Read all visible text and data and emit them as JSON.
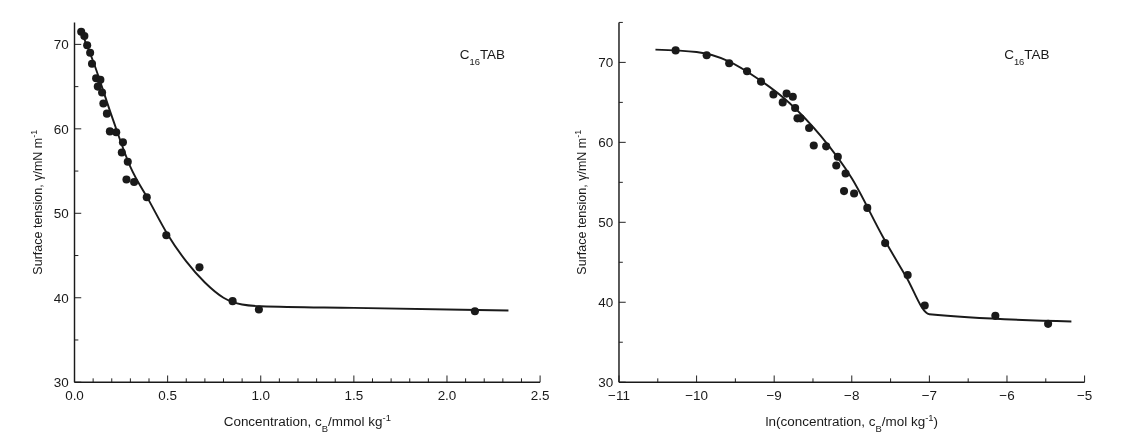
{
  "chart_data": [
    {
      "type": "scatter",
      "xlabel": "Concentration, c$_{B}$/mmol kg$^{-1}$",
      "ylabel": "Surface tension, γ/mN m$^{-1}$",
      "annotations": [
        "C$_{16}$TAB"
      ],
      "xlim": [
        0,
        2.5
      ],
      "ylim": [
        30,
        72.6
      ],
      "xticks": [
        {
          "value": 0,
          "label": "0.0"
        },
        {
          "value": 0.1,
          "label": null
        },
        {
          "value": 0.2,
          "label": null
        },
        {
          "value": 0.3,
          "label": null
        },
        {
          "value": 0.4,
          "label": null
        },
        0.5,
        {
          "value": 0.6,
          "label": null
        },
        {
          "value": 0.7,
          "label": null
        },
        {
          "value": 0.8,
          "label": null
        },
        {
          "value": 0.9,
          "label": null
        },
        {
          "value": 1,
          "label": "1.0"
        },
        {
          "value": 1.1,
          "label": null
        },
        {
          "value": 1.2,
          "label": null
        },
        {
          "value": 1.3,
          "label": null
        },
        {
          "value": 1.4,
          "label": null
        },
        1.5,
        {
          "value": 1.6,
          "label": null
        },
        {
          "value": 1.7,
          "label": null
        },
        {
          "value": 1.8,
          "label": null
        },
        {
          "value": 1.9,
          "label": null
        },
        {
          "value": 2,
          "label": "2.0"
        },
        {
          "value": 2.1,
          "label": null
        },
        {
          "value": 2.2,
          "label": null
        },
        {
          "value": 2.3,
          "label": null
        },
        {
          "value": 2.4,
          "label": null
        },
        2.5
      ],
      "yticks": [
        30,
        {
          "value": 35,
          "label": null
        },
        40,
        {
          "value": 45,
          "label": null
        },
        50,
        {
          "value": 55,
          "label": null
        },
        60,
        {
          "value": 65,
          "label": null
        },
        70
      ],
      "grid": false,
      "series": [
        {
          "type": "scatter",
          "marker": "circle",
          "color": "#1a1a1a",
          "x": [
            0.036,
            0.053,
            0.068,
            0.084,
            0.094,
            0.116,
            0.139,
            0.125,
            0.148,
            0.155,
            0.174,
            0.19,
            0.224,
            0.26,
            0.254,
            0.286,
            0.279,
            0.32,
            0.388,
            0.493,
            0.671,
            0.849,
            0.99,
            2.15
          ],
          "values": [
            71.5,
            71.0,
            69.9,
            69.0,
            67.7,
            66.0,
            65.8,
            65.0,
            64.3,
            63.0,
            61.8,
            59.7,
            59.6,
            58.4,
            57.2,
            56.1,
            54.0,
            53.7,
            51.9,
            47.4,
            43.6,
            39.6,
            38.6,
            38.4
          ]
        },
        {
          "type": "line",
          "line_style": "solid",
          "color": "#1a1a1a",
          "x": [
            0.03,
            0.1,
            0.2,
            0.3,
            0.4,
            0.5,
            0.6,
            0.7,
            0.8,
            0.9,
            1.0,
            1.5,
            2.33
          ],
          "values": [
            71.8,
            68,
            61.5,
            55.5,
            51.5,
            47.5,
            44.3,
            41.8,
            40.0,
            39.2,
            39.0,
            38.8,
            38.5
          ]
        }
      ]
    },
    {
      "type": "scatter",
      "xlabel": "ln(concentration, c$_{B}$/mol kg$^{-1}$)",
      "ylabel": "Surface tension, γ/mN m$^{-1}$",
      "annotations": [
        "C$_{16}$TAB"
      ],
      "xlim": [
        -11,
        -5
      ],
      "ylim": [
        30,
        75
      ],
      "xticks": [
        {
          "value": -11,
          "label": "−11"
        },
        {
          "value": -10.5,
          "label": null
        },
        {
          "value": -10,
          "label": "−10"
        },
        {
          "value": -9.5,
          "label": null
        },
        {
          "value": -9,
          "label": "−9"
        },
        {
          "value": -8.5,
          "label": null
        },
        {
          "value": -8,
          "label": "−8"
        },
        {
          "value": -7.5,
          "label": null
        },
        {
          "value": -7,
          "label": "−7"
        },
        {
          "value": -6.5,
          "label": null
        },
        {
          "value": -6,
          "label": "−6"
        },
        {
          "value": -5.5,
          "label": null
        },
        {
          "value": -5,
          "label": "−5"
        }
      ],
      "yticks": [
        30,
        {
          "value": 35,
          "label": null
        },
        40,
        {
          "value": 45,
          "label": null
        },
        50,
        {
          "value": 55,
          "label": null
        },
        60,
        {
          "value": 65,
          "label": null
        },
        70,
        {
          "value": 75,
          "label": null
        }
      ],
      "grid": false,
      "series": [
        {
          "type": "scatter",
          "marker": "circle",
          "color": "#1a1a1a",
          "x": [
            -10.27,
            -9.87,
            -9.58,
            -9.35,
            -9.17,
            -9.01,
            -8.89,
            -8.84,
            -8.76,
            -8.73,
            -8.7,
            -8.66,
            -8.55,
            -8.49,
            -8.33,
            -8.18,
            -8.2,
            -8.08,
            -8.1,
            -7.97,
            -7.8,
            -7.57,
            -7.28,
            -7.06,
            -6.15,
            -5.47
          ],
          "values": [
            71.5,
            70.9,
            69.9,
            68.9,
            67.6,
            66.0,
            65.0,
            66.1,
            65.7,
            64.3,
            63.0,
            63.0,
            61.8,
            59.6,
            59.5,
            58.2,
            57.1,
            56.1,
            53.9,
            53.6,
            51.8,
            47.4,
            43.4,
            39.6,
            38.3,
            37.3
          ]
        },
        {
          "type": "line",
          "line_style": "solid",
          "color": "#1a1a1a",
          "x": [
            -10.53,
            -10.0,
            -9.6,
            -9.2,
            -8.8,
            -8.4,
            -8.0,
            -7.6,
            -7.3,
            -7.0,
            -5.17
          ],
          "values": [
            71.6,
            71.3,
            70.2,
            67.9,
            64.9,
            60.8,
            55.5,
            48.2,
            43.2,
            38.5,
            37.6
          ]
        }
      ]
    }
  ]
}
